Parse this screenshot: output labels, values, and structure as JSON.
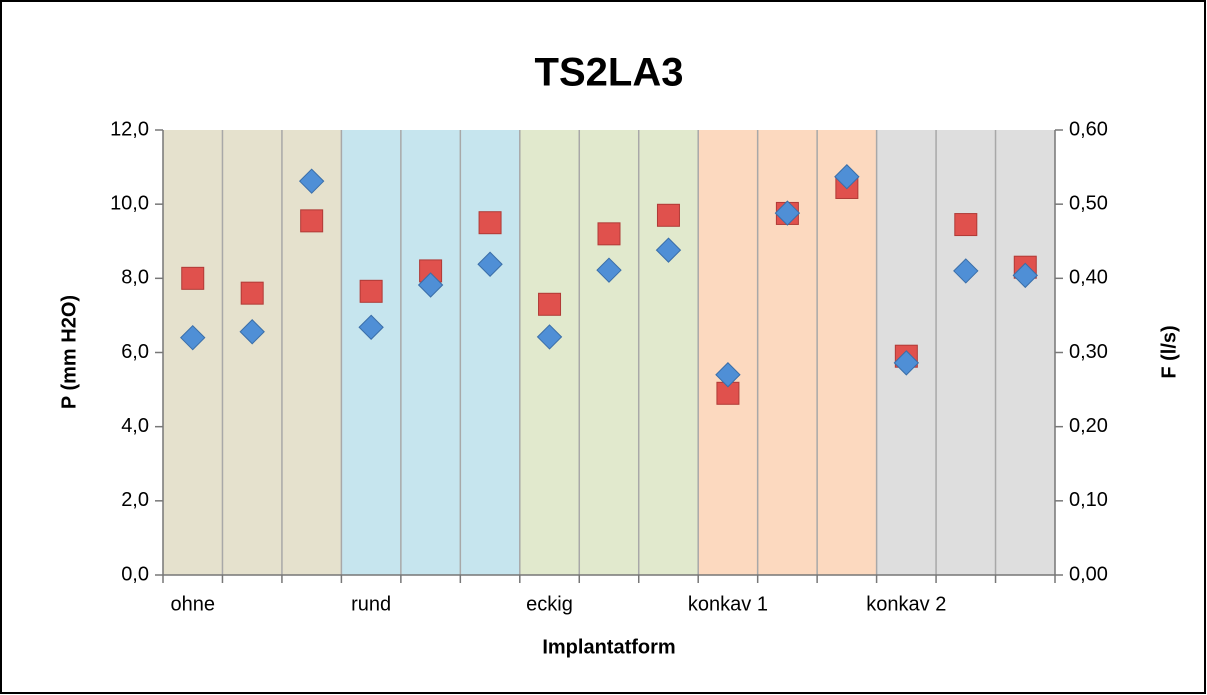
{
  "chart_data": {
    "type": "scatter",
    "title": "TS2LA3",
    "x_label": "Implantatform",
    "y_label": "P (mm H2O)",
    "y2_label": "F (l/s)",
    "categories": [
      "ohne",
      null,
      null,
      "rund",
      null,
      null,
      "eckig",
      null,
      null,
      "konkav 1",
      null,
      null,
      "konkav 2",
      null,
      null
    ],
    "band_colors": [
      "#e5e1cd",
      "#c6e5ee",
      "#e1e9cd",
      "#fcd9bf",
      "#dedede"
    ],
    "series": [
      {
        "name": "P (mm H2O)",
        "color": "#e0514d",
        "marker": "square",
        "values": [
          8.0,
          7.6,
          9.55,
          7.65,
          8.2,
          9.5,
          7.3,
          9.2,
          9.7,
          4.9,
          9.75,
          10.45,
          5.9,
          9.45,
          8.3
        ]
      },
      {
        "name": "F (l/s)",
        "color": "#4f8fd6",
        "marker": "diamond",
        "axis": "y2",
        "values": [
          0.32,
          0.328,
          0.531,
          0.334,
          0.391,
          0.419,
          0.321,
          0.411,
          0.438,
          0.27,
          0.488,
          0.537,
          0.286,
          0.41,
          0.404
        ]
      }
    ],
    "ylim": [
      0,
      12
    ],
    "yticks": [
      {
        "value": 0,
        "label": "0,0"
      },
      {
        "value": 2,
        "label": "2,0"
      },
      {
        "value": 4,
        "label": "4,0"
      },
      {
        "value": 6,
        "label": "6,0"
      },
      {
        "value": 8,
        "label": "8,0"
      },
      {
        "value": 10,
        "label": "10,0"
      },
      {
        "value": 12,
        "label": "12,0"
      }
    ],
    "y2lim": [
      0,
      0.6
    ],
    "y2ticks": [
      {
        "value": 0,
        "label": "0,00"
      },
      {
        "value": 0.1,
        "label": "0,10"
      },
      {
        "value": 0.2,
        "label": "0,20"
      },
      {
        "value": 0.3,
        "label": "0,30"
      },
      {
        "value": 0.4,
        "label": "0,40"
      },
      {
        "value": 0.5,
        "label": "0,50"
      },
      {
        "value": 0.6,
        "label": "0,60"
      }
    ],
    "grid": true
  }
}
